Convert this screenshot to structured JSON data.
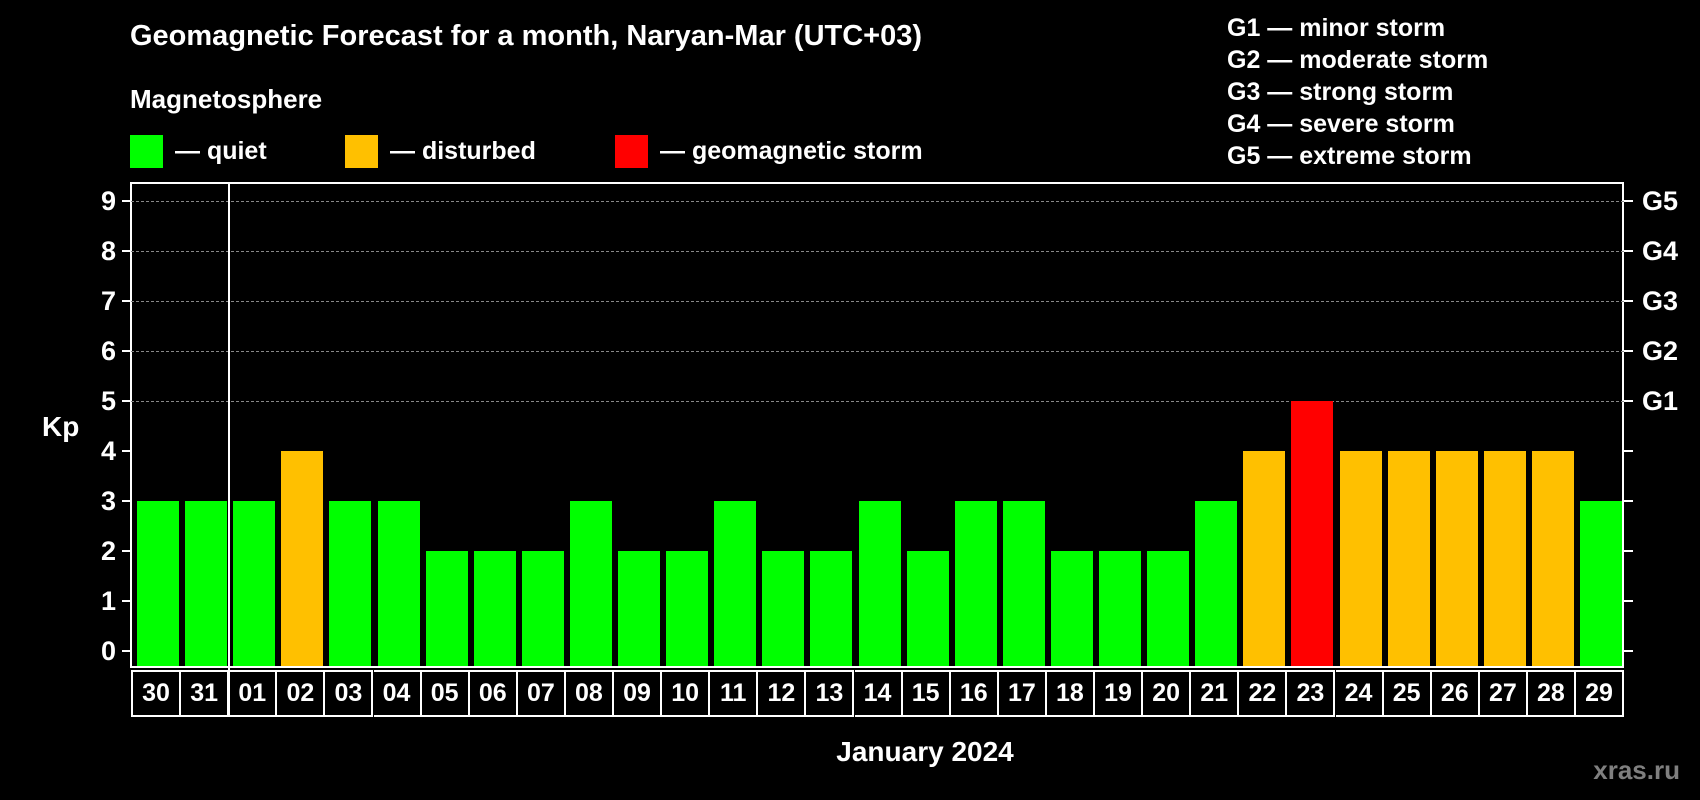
{
  "title": "Geomagnetic Forecast for a month, Naryan-Mar (UTC+03)",
  "subtitle": "Magnetosphere",
  "legend": [
    {
      "label": "— quiet",
      "color": "#00ff00"
    },
    {
      "label": "— disturbed",
      "color": "#ffc000"
    },
    {
      "label": "— geomagnetic storm",
      "color": "#ff0000"
    }
  ],
  "g_scale_legend": [
    "G1 — minor storm",
    "G2 — moderate storm",
    "G3 — strong storm",
    "G4 — severe storm",
    "G5 — extreme storm"
  ],
  "y_axis_label": "Kp",
  "x_axis_label": "January 2024",
  "watermark": "xras.ru",
  "colors": {
    "quiet": "#00ff00",
    "disturbed": "#ffc000",
    "storm": "#ff0000",
    "background": "#000000",
    "grid": "#888888"
  },
  "chart_data": {
    "type": "bar",
    "title": "Geomagnetic Forecast for a month, Naryan-Mar (UTC+03)",
    "xlabel": "January 2024",
    "ylabel": "Kp",
    "ylim": [
      0,
      9
    ],
    "yticks": [
      0,
      1,
      2,
      3,
      4,
      5,
      6,
      7,
      8,
      9
    ],
    "right_axis_ticks": [
      {
        "kp": 5,
        "label": "G1"
      },
      {
        "kp": 6,
        "label": "G2"
      },
      {
        "kp": 7,
        "label": "G3"
      },
      {
        "kp": 8,
        "label": "G4"
      },
      {
        "kp": 9,
        "label": "G5"
      }
    ],
    "grid": "dashed horizontal at Kp 5-9",
    "categories": [
      "30",
      "31",
      "01",
      "02",
      "03",
      "04",
      "05",
      "06",
      "07",
      "08",
      "09",
      "10",
      "11",
      "12",
      "13",
      "14",
      "15",
      "16",
      "17",
      "18",
      "19",
      "20",
      "21",
      "22",
      "23",
      "24",
      "25",
      "26",
      "27",
      "28",
      "29"
    ],
    "values": [
      3,
      3,
      3,
      4,
      3,
      3,
      2,
      2,
      2,
      3,
      2,
      2,
      3,
      2,
      2,
      3,
      2,
      3,
      3,
      2,
      2,
      2,
      3,
      4,
      5,
      4,
      4,
      4,
      4,
      4,
      3
    ],
    "status": [
      "quiet",
      "quiet",
      "quiet",
      "disturbed",
      "quiet",
      "quiet",
      "quiet",
      "quiet",
      "quiet",
      "quiet",
      "quiet",
      "quiet",
      "quiet",
      "quiet",
      "quiet",
      "quiet",
      "quiet",
      "quiet",
      "quiet",
      "quiet",
      "quiet",
      "quiet",
      "quiet",
      "disturbed",
      "storm",
      "disturbed",
      "disturbed",
      "disturbed",
      "disturbed",
      "disturbed",
      "quiet"
    ],
    "legend": [
      "quiet",
      "disturbed",
      "geomagnetic storm"
    ]
  }
}
